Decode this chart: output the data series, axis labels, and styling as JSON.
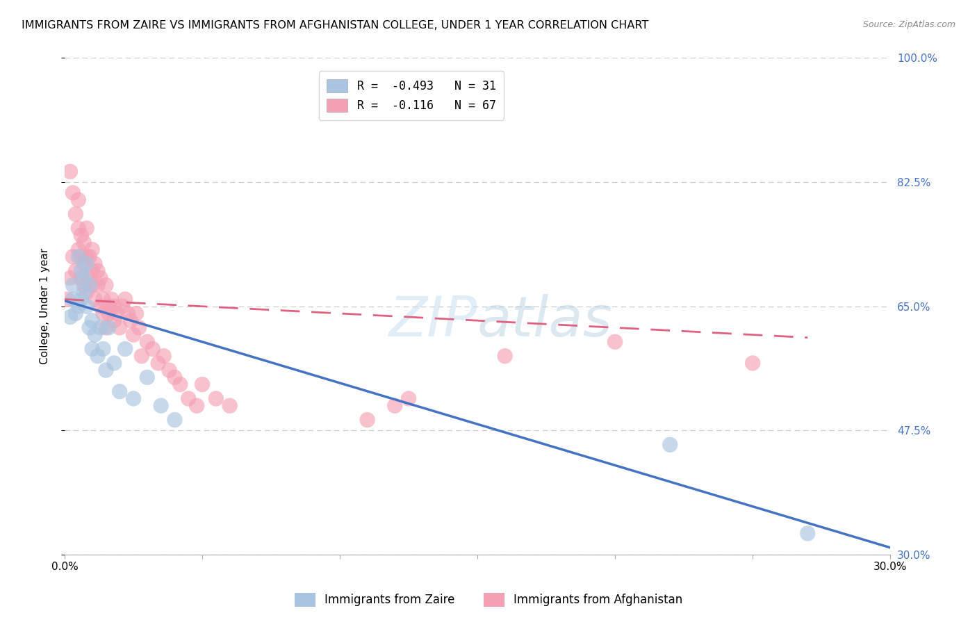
{
  "title": "IMMIGRANTS FROM ZAIRE VS IMMIGRANTS FROM AFGHANISTAN COLLEGE, UNDER 1 YEAR CORRELATION CHART",
  "source": "Source: ZipAtlas.com",
  "ylabel": "College, Under 1 year",
  "legend_label1": "Immigrants from Zaire",
  "legend_label2": "Immigrants from Afghanistan",
  "R1": -0.493,
  "N1": 31,
  "R2": -0.116,
  "N2": 67,
  "xlim": [
    0.0,
    0.3
  ],
  "ylim": [
    0.3,
    1.0
  ],
  "yticks": [
    0.3,
    0.475,
    0.65,
    0.825,
    1.0
  ],
  "ytick_labels": [
    "30.0%",
    "47.5%",
    "65.0%",
    "82.5%",
    "100.0%"
  ],
  "xticks": [
    0.0,
    0.05,
    0.1,
    0.15,
    0.2,
    0.25,
    0.3
  ],
  "xtick_labels": [
    "0.0%",
    "",
    "",
    "",
    "",
    "",
    "30.0%"
  ],
  "color_zaire": "#a8c4e0",
  "color_afghanistan": "#f4a0b4",
  "trendline_color_zaire": "#4472c4",
  "trendline_color_afghanistan": "#e06080",
  "background_color": "#ffffff",
  "grid_color": "#cccccc",
  "right_axis_color": "#4472c4",
  "title_fontsize": 11.5,
  "axis_label_fontsize": 11,
  "tick_fontsize": 11,
  "watermark_text": "ZIPatlas",
  "zaire_x": [
    0.002,
    0.003,
    0.003,
    0.004,
    0.005,
    0.005,
    0.006,
    0.006,
    0.007,
    0.007,
    0.008,
    0.008,
    0.009,
    0.009,
    0.01,
    0.01,
    0.011,
    0.012,
    0.013,
    0.014,
    0.015,
    0.016,
    0.018,
    0.02,
    0.022,
    0.025,
    0.03,
    0.035,
    0.04,
    0.22,
    0.27
  ],
  "zaire_y": [
    0.635,
    0.66,
    0.68,
    0.64,
    0.72,
    0.65,
    0.7,
    0.66,
    0.69,
    0.67,
    0.71,
    0.65,
    0.68,
    0.62,
    0.63,
    0.59,
    0.61,
    0.58,
    0.62,
    0.59,
    0.56,
    0.62,
    0.57,
    0.53,
    0.59,
    0.52,
    0.55,
    0.51,
    0.49,
    0.455,
    0.33
  ],
  "afghanistan_x": [
    0.001,
    0.002,
    0.002,
    0.003,
    0.003,
    0.004,
    0.004,
    0.005,
    0.005,
    0.005,
    0.006,
    0.006,
    0.006,
    0.007,
    0.007,
    0.007,
    0.008,
    0.008,
    0.008,
    0.009,
    0.009,
    0.01,
    0.01,
    0.01,
    0.011,
    0.011,
    0.012,
    0.012,
    0.013,
    0.013,
    0.014,
    0.014,
    0.015,
    0.015,
    0.016,
    0.016,
    0.017,
    0.018,
    0.018,
    0.019,
    0.02,
    0.021,
    0.022,
    0.023,
    0.024,
    0.025,
    0.026,
    0.027,
    0.028,
    0.03,
    0.032,
    0.034,
    0.036,
    0.038,
    0.04,
    0.042,
    0.045,
    0.048,
    0.05,
    0.055,
    0.06,
    0.11,
    0.12,
    0.125,
    0.16,
    0.2,
    0.25
  ],
  "afghanistan_y": [
    0.66,
    0.84,
    0.69,
    0.81,
    0.72,
    0.78,
    0.7,
    0.8,
    0.73,
    0.76,
    0.72,
    0.69,
    0.75,
    0.71,
    0.74,
    0.68,
    0.76,
    0.72,
    0.67,
    0.69,
    0.72,
    0.73,
    0.68,
    0.7,
    0.71,
    0.66,
    0.68,
    0.7,
    0.65,
    0.69,
    0.66,
    0.64,
    0.68,
    0.62,
    0.65,
    0.64,
    0.66,
    0.63,
    0.65,
    0.64,
    0.62,
    0.65,
    0.66,
    0.64,
    0.63,
    0.61,
    0.64,
    0.62,
    0.58,
    0.6,
    0.59,
    0.57,
    0.58,
    0.56,
    0.55,
    0.54,
    0.52,
    0.51,
    0.54,
    0.52,
    0.51,
    0.49,
    0.51,
    0.52,
    0.58,
    0.6,
    0.57
  ],
  "trendline_zaire_y0": 0.658,
  "trendline_zaire_y1": 0.31,
  "trendline_afghanistan_y0": 0.66,
  "trendline_afghanistan_y1": 0.6
}
